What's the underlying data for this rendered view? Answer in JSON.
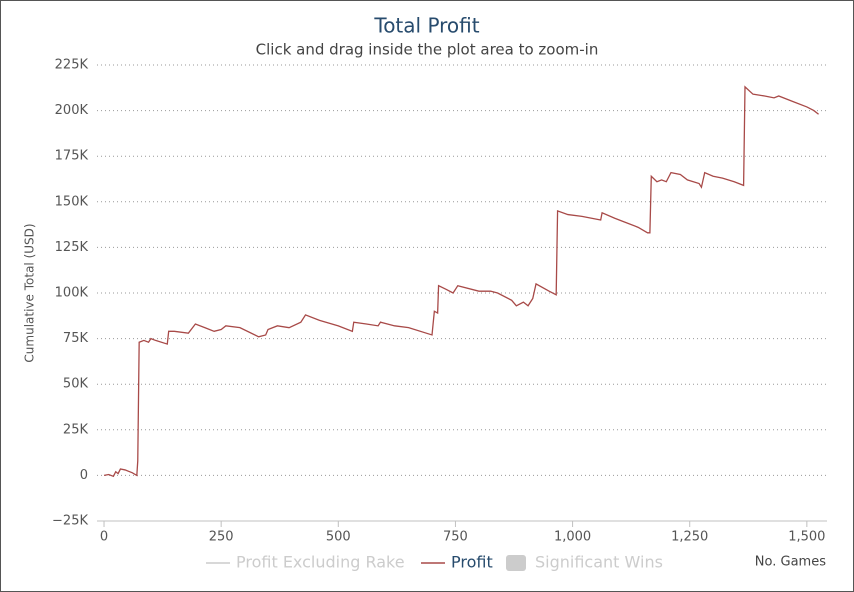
{
  "chart_data": {
    "type": "line",
    "title": "Total Profit",
    "subtitle": "Click and drag inside the plot area to zoom-in",
    "y_label": "Cumulative Total (USD)",
    "x_label": "No. Games",
    "xlim": [
      -15,
      1543
    ],
    "xticks": [
      0,
      250,
      500,
      {
        "value": 750,
        "label": "750"
      },
      {
        "value": 1000,
        "label": "1,000"
      },
      {
        "value": 1250,
        "label": "1,250"
      },
      {
        "value": 1500,
        "label": "1,500"
      }
    ],
    "ylim": [
      -25000,
      225000
    ],
    "yticks": [
      {
        "value": -25000,
        "label": "−25K"
      },
      {
        "value": 0,
        "label": "0"
      },
      {
        "value": 25000,
        "label": "25K"
      },
      {
        "value": 50000,
        "label": "50K"
      },
      {
        "value": 75000,
        "label": "75K"
      },
      {
        "value": 100000,
        "label": "100K"
      },
      {
        "value": 125000,
        "label": "125K"
      },
      {
        "value": 150000,
        "label": "150K"
      },
      {
        "value": 175000,
        "label": "175K"
      },
      {
        "value": 200000,
        "label": "200K"
      },
      {
        "value": 225000,
        "label": "225K"
      }
    ],
    "grid": true,
    "hidden_series": [
      {
        "name": "Profit Excluding Rake",
        "symbol": "line"
      },
      {
        "name": "Significant Wins",
        "symbol": "box"
      }
    ],
    "series": [
      {
        "name": "Profit",
        "color": "#a84a48",
        "x": [
          0,
          10,
          20,
          25,
          30,
          35,
          45,
          60,
          70,
          72,
          75,
          85,
          95,
          100,
          110,
          135,
          138,
          150,
          180,
          195,
          215,
          235,
          250,
          260,
          290,
          330,
          345,
          350,
          370,
          395,
          420,
          430,
          460,
          500,
          530,
          533,
          560,
          585,
          590,
          620,
          650,
          700,
          705,
          712,
          714,
          730,
          745,
          755,
          800,
          825,
          840,
          870,
          880,
          895,
          905,
          915,
          922,
          950,
          965,
          968,
          990,
          1020,
          1060,
          1063,
          1090,
          1110,
          1140,
          1160,
          1165,
          1168,
          1180,
          1190,
          1200,
          1210,
          1230,
          1245,
          1270,
          1275,
          1282,
          1300,
          1320,
          1345,
          1365,
          1368,
          1385,
          1410,
          1430,
          1440,
          1470,
          1500,
          1515,
          1525
        ],
        "values": [
          0,
          500,
          -500,
          2000,
          1000,
          3500,
          3000,
          1500,
          0,
          8000,
          73000,
          74000,
          73000,
          75000,
          74000,
          72000,
          79000,
          79000,
          78000,
          83000,
          81000,
          79000,
          80000,
          82000,
          81000,
          76000,
          77000,
          80000,
          82000,
          81000,
          84000,
          88000,
          85000,
          82000,
          79000,
          84000,
          83000,
          82000,
          84000,
          82000,
          81000,
          77000,
          90000,
          89000,
          104000,
          102000,
          100000,
          104000,
          101000,
          101000,
          100000,
          96000,
          93000,
          95000,
          93000,
          97000,
          105000,
          101000,
          99000,
          145000,
          143000,
          142000,
          140000,
          144000,
          141000,
          139000,
          136000,
          133000,
          133000,
          164000,
          161000,
          162000,
          161000,
          166000,
          165000,
          162000,
          160000,
          158000,
          166000,
          164000,
          163000,
          161000,
          159000,
          213000,
          209000,
          208000,
          207000,
          208000,
          205000,
          202000,
          200000,
          198000
        ]
      }
    ]
  }
}
